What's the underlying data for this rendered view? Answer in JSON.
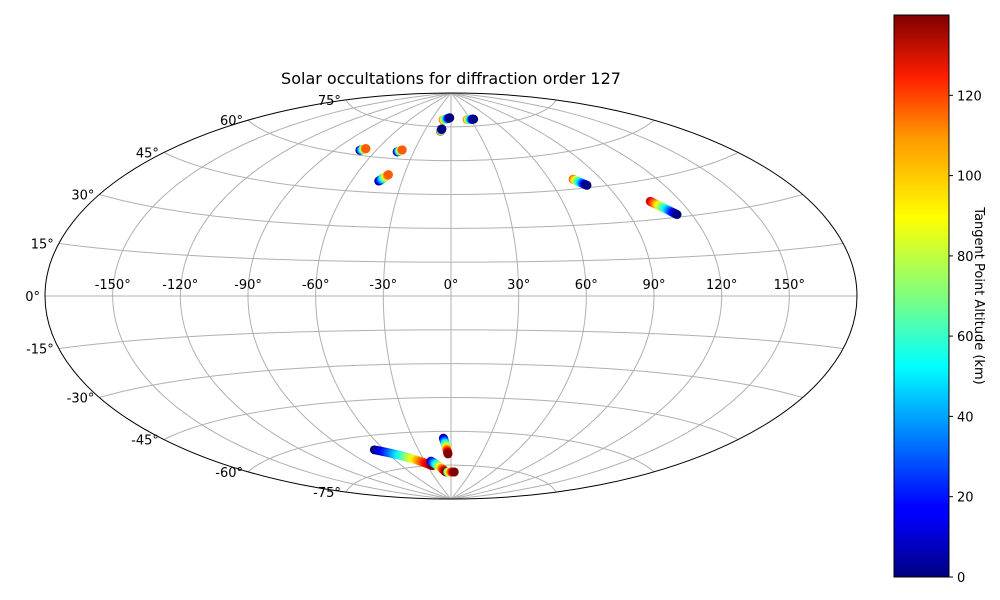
{
  "chart_data": {
    "type": "scatter",
    "projection": "aitoff",
    "title": "Solar occultations for diffraction order 127",
    "xlabel": "",
    "ylabel": "",
    "x_ticks": [
      "-150°",
      "-120°",
      "-90°",
      "-60°",
      "-30°",
      "0°",
      "30°",
      "60°",
      "90°",
      "120°",
      "150°"
    ],
    "y_ticks": [
      "-75°",
      "-60°",
      "-45°",
      "-30°",
      "-15°",
      "0°",
      "15°",
      "30°",
      "45°",
      "60°",
      "75°"
    ],
    "xlim": [
      -180,
      180
    ],
    "ylim": [
      -90,
      90
    ],
    "grid": true,
    "colorbar": {
      "label": "Tangent Point Altitude (km)",
      "range": [
        0,
        140
      ],
      "ticks": [
        "0",
        "20",
        "40",
        "60",
        "80",
        "100",
        "120"
      ],
      "colormap": "jet"
    },
    "series": [
      {
        "lon_start": -72,
        "lat_start": 62,
        "lon_end": -69,
        "lat_end": 63,
        "alt_start": 0,
        "alt_end": 110
      },
      {
        "lon_start": -43,
        "lat_start": 63,
        "lon_end": -40,
        "lat_end": 64,
        "alt_start": 0,
        "alt_end": 110
      },
      {
        "lon_start": -44,
        "lat_start": 50,
        "lon_end": -40,
        "lat_end": 53,
        "alt_start": 0,
        "alt_end": 110
      },
      {
        "lon_start": -12,
        "lat_start": 73,
        "lon_end": -11,
        "lat_end": 74,
        "alt_start": 130,
        "alt_end": 0
      },
      {
        "lon_start": -12,
        "lat_start": 78,
        "lon_end": -2,
        "lat_end": 79,
        "alt_start": 110,
        "alt_end": 0
      },
      {
        "lon_start": 25,
        "lat_start": 78,
        "lon_end": 35,
        "lat_end": 78,
        "alt_start": 110,
        "alt_end": 0
      },
      {
        "lon_start": 74,
        "lat_start": 49,
        "lon_end": 79,
        "lat_end": 46,
        "alt_start": 110,
        "alt_end": 0
      },
      {
        "lon_start": 105,
        "lat_start": 37,
        "lon_end": 113,
        "lat_end": 31,
        "alt_start": 130,
        "alt_end": 0
      },
      {
        "lon_start": -68,
        "lat_start": -66,
        "lon_end": -24,
        "lat_end": -75,
        "alt_start": 0,
        "alt_end": 140
      },
      {
        "lon_start": -23,
        "lat_start": -73,
        "lon_end": -8,
        "lat_end": -78,
        "alt_start": 10,
        "alt_end": 140
      },
      {
        "lon_start": -6,
        "lat_start": -63,
        "lon_end": -3,
        "lat_end": -70,
        "alt_start": 0,
        "alt_end": 140
      },
      {
        "lon_start": -5,
        "lat_start": -78,
        "lon_end": 5,
        "lat_end": -78,
        "alt_start": 60,
        "alt_end": 140
      }
    ]
  }
}
